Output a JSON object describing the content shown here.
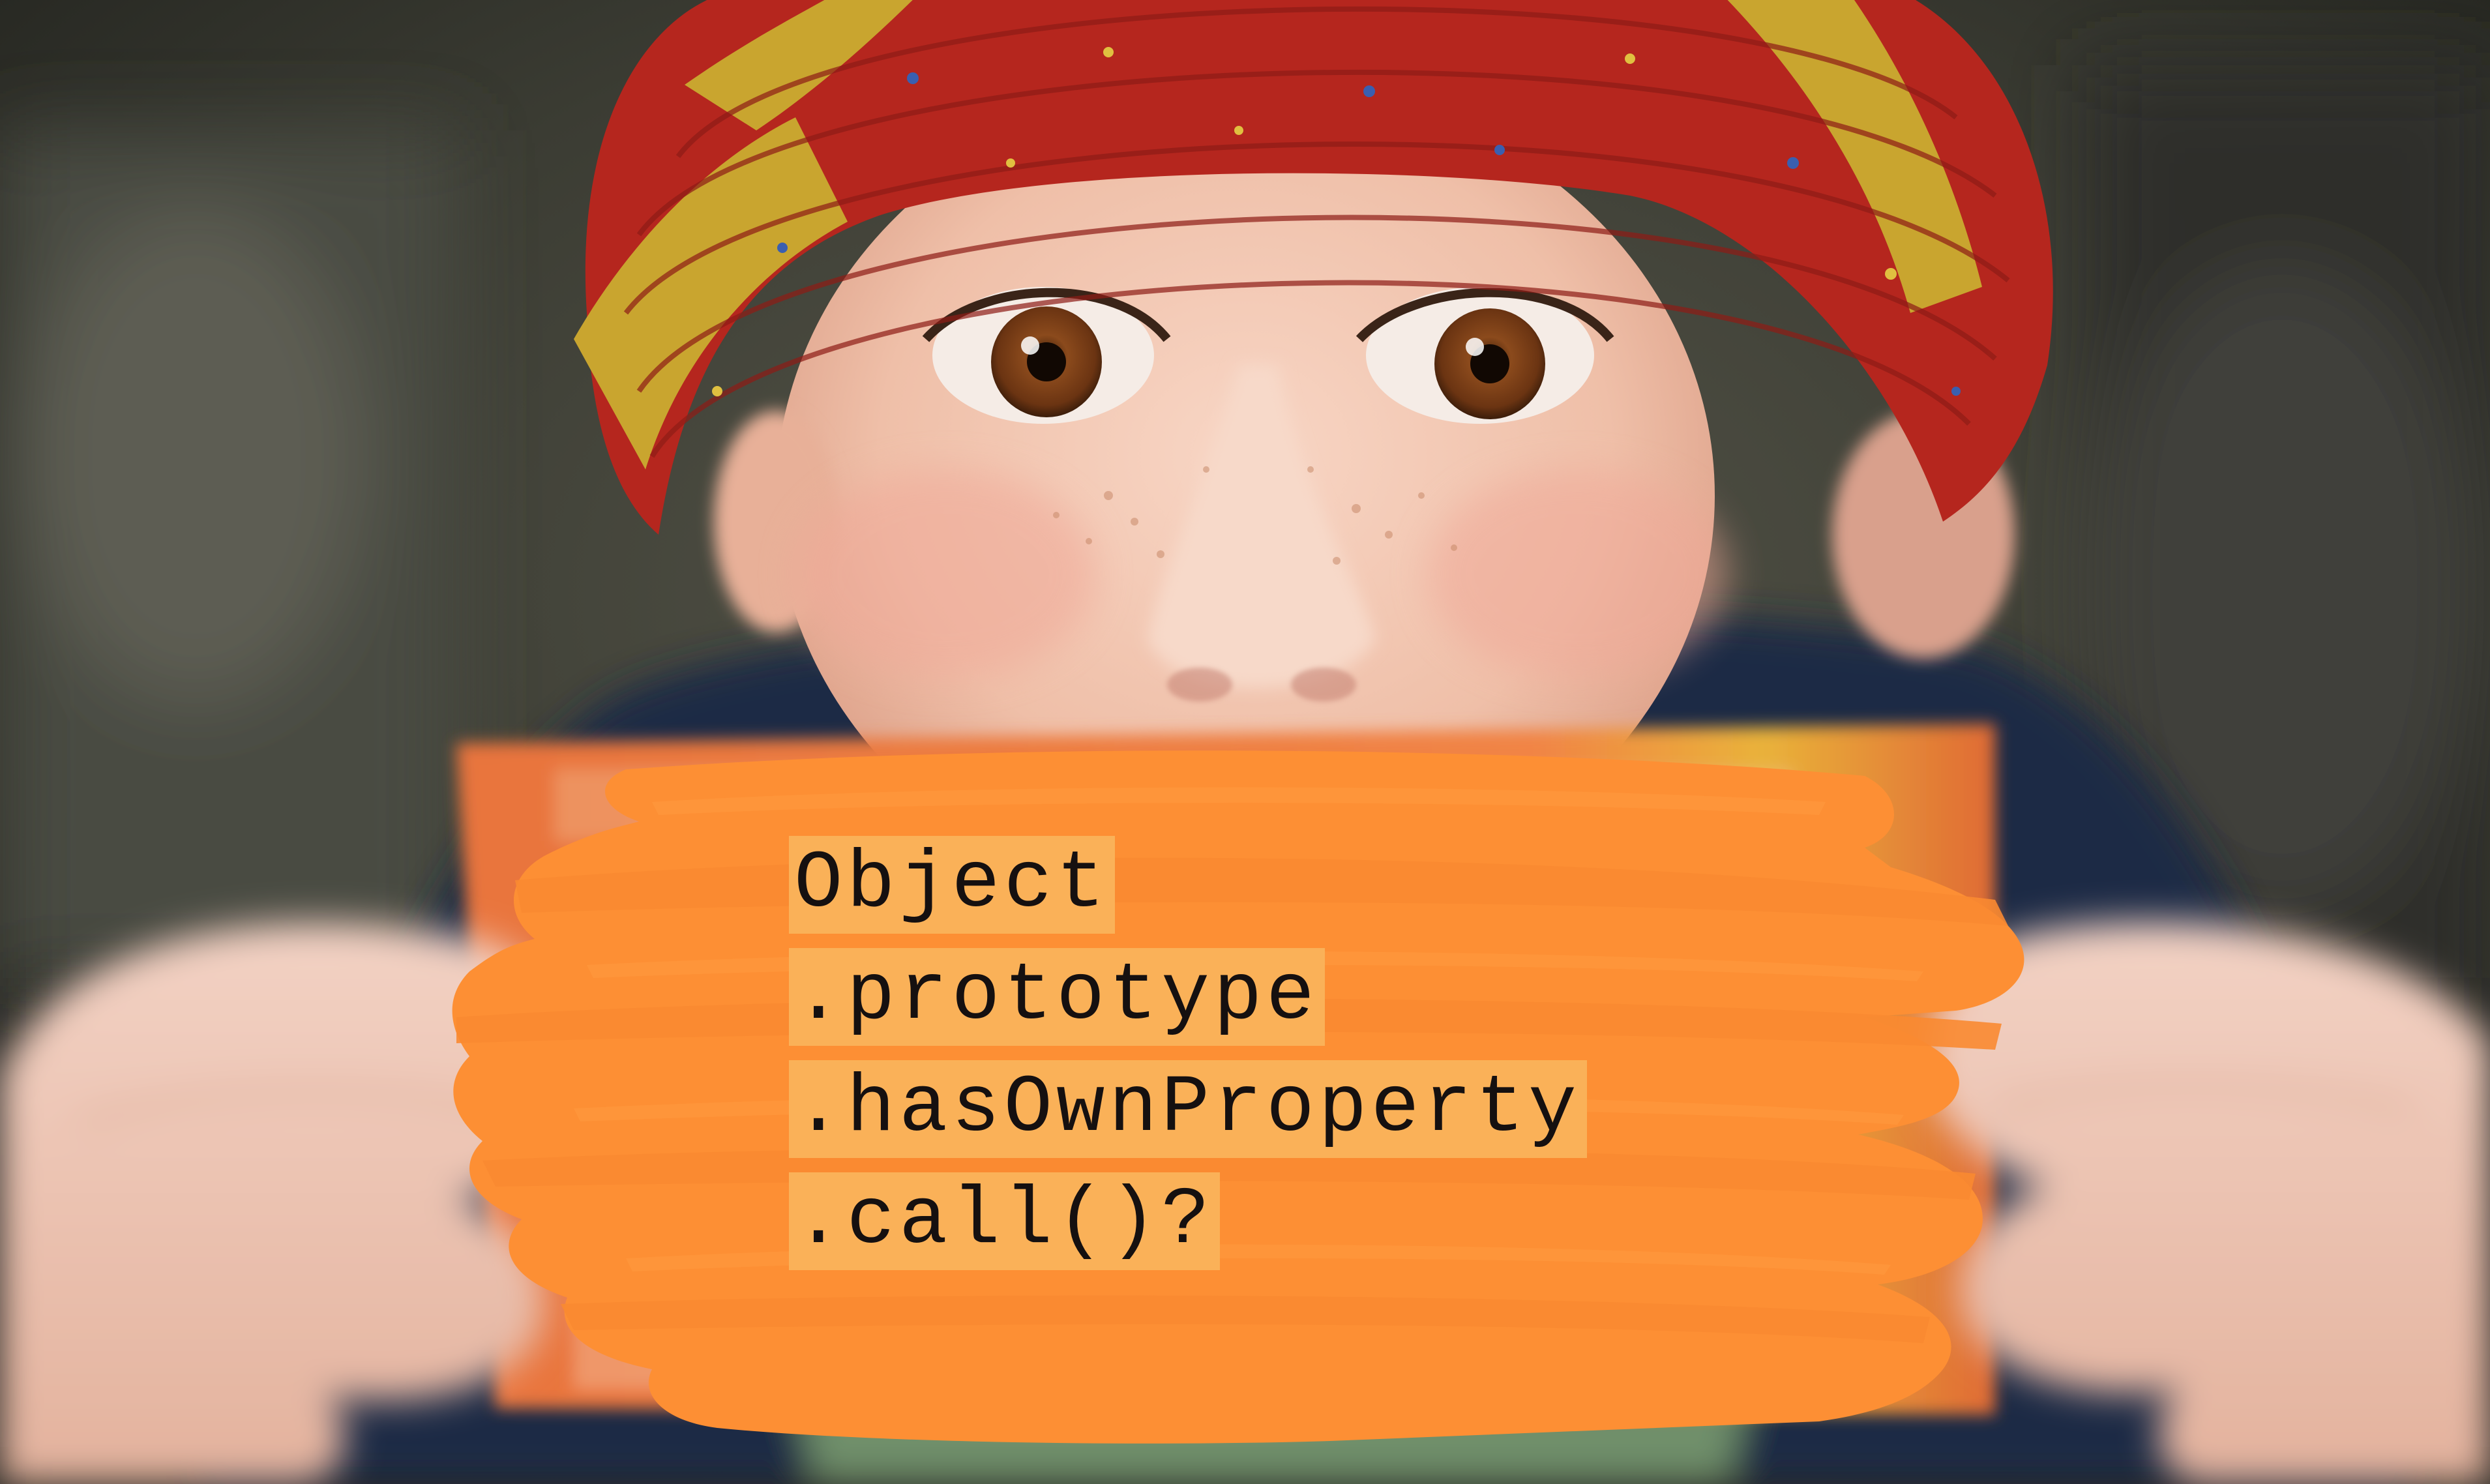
{
  "code": {
    "lines": [
      "Object",
      ".prototype",
      ".hasOwnProperty",
      ".call()?"
    ]
  },
  "colors": {
    "paint_stroke": "#fd8f34",
    "text_highlight": "#fab158",
    "text": "#151010",
    "hat_red": "#b5261e",
    "hat_yellow": "#c9a52f",
    "skin": "#f1c6b1",
    "eye_iris": "#7a4218",
    "scarf": "#1c2a45",
    "box_orange": "#ef7d40",
    "background_dark": "#34352d"
  },
  "icons": {
    "overlay": "orange-paint-stroke",
    "subject": "child-in-knit-hat"
  }
}
